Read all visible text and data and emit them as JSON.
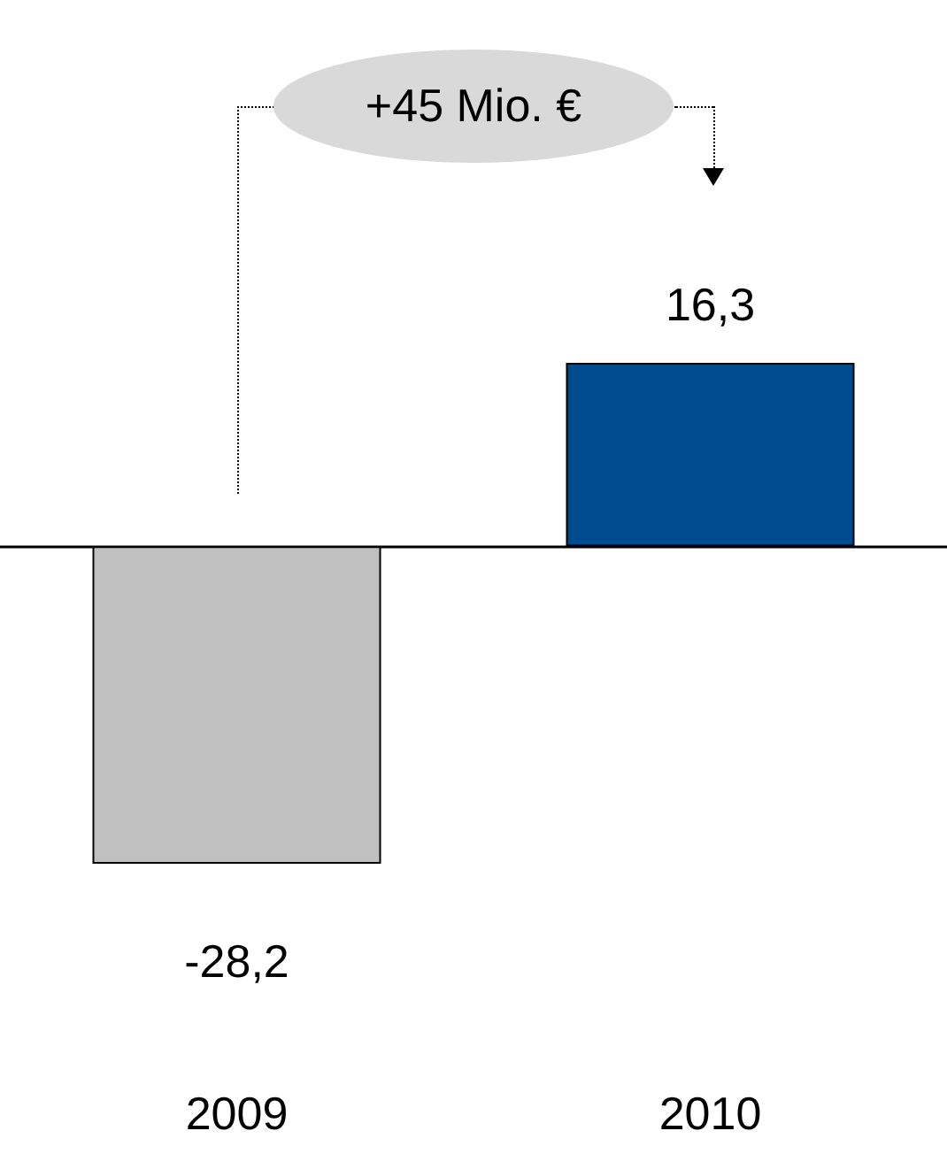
{
  "chart_data": {
    "type": "bar",
    "categories": [
      "2009",
      "2010"
    ],
    "values": [
      -28.2,
      16.3
    ],
    "colors": [
      "#c0c0c0",
      "#004a8f"
    ],
    "value_labels": [
      "-28,2",
      "16,3"
    ],
    "annotations": [
      "+45 Mio. €"
    ]
  }
}
